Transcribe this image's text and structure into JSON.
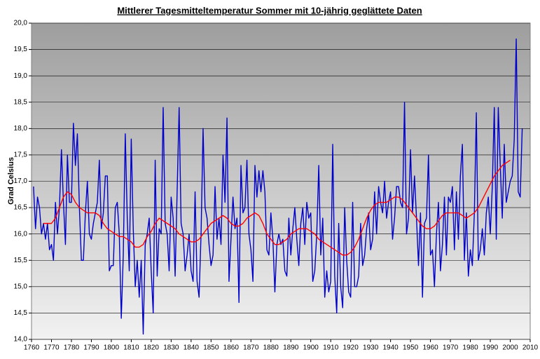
{
  "chart_data": {
    "type": "line",
    "title": "Mittlerer Tagesmitteltemperatur Sommer mit 10-jährig geglättete Daten",
    "y_label": "Grad Celsius",
    "xlim": [
      1760,
      2010
    ],
    "xticks": [
      1760,
      1770,
      1780,
      1790,
      1800,
      1810,
      1820,
      1830,
      1840,
      1850,
      1860,
      1870,
      1880,
      1890,
      1900,
      1910,
      1920,
      1930,
      1940,
      1950,
      1960,
      1970,
      1980,
      1990,
      2000,
      2010
    ],
    "ylim": [
      14,
      20
    ],
    "yticks": [
      {
        "value": 14,
        "label": "14,0"
      },
      {
        "value": 14.5,
        "label": "14,5"
      },
      {
        "value": 15,
        "label": "15,0"
      },
      {
        "value": 15.5,
        "label": "15,5"
      },
      {
        "value": 16,
        "label": "16,0"
      },
      {
        "value": 16.5,
        "label": "16,5"
      },
      {
        "value": 17,
        "label": "17,0"
      },
      {
        "value": 17.5,
        "label": "17,5"
      },
      {
        "value": 18,
        "label": "18,0"
      },
      {
        "value": 18.5,
        "label": "18,5"
      },
      {
        "value": 19,
        "label": "19,0"
      },
      {
        "value": 19.5,
        "label": "19,5"
      },
      {
        "value": 20,
        "label": "20,0"
      }
    ],
    "grid": true,
    "series": [
      {
        "color": "#0000cc",
        "x": [
          1761,
          1762,
          1763,
          1764,
          1765,
          1766,
          1767,
          1768,
          1769,
          1770,
          1771,
          1772,
          1773,
          1774,
          1775,
          1776,
          1777,
          1778,
          1779,
          1780,
          1781,
          1782,
          1783,
          1784,
          1785,
          1786,
          1787,
          1788,
          1789,
          1790,
          1791,
          1792,
          1793,
          1794,
          1795,
          1796,
          1797,
          1798,
          1799,
          1800,
          1801,
          1802,
          1803,
          1804,
          1805,
          1806,
          1807,
          1808,
          1809,
          1810,
          1811,
          1812,
          1813,
          1814,
          1815,
          1816,
          1817,
          1818,
          1819,
          1820,
          1821,
          1822,
          1823,
          1824,
          1825,
          1826,
          1827,
          1828,
          1829,
          1830,
          1831,
          1832,
          1833,
          1834,
          1835,
          1836,
          1837,
          1838,
          1839,
          1840,
          1841,
          1842,
          1843,
          1844,
          1845,
          1846,
          1847,
          1848,
          1849,
          1850,
          1851,
          1852,
          1853,
          1854,
          1855,
          1856,
          1857,
          1858,
          1859,
          1860,
          1861,
          1862,
          1863,
          1864,
          1865,
          1866,
          1867,
          1868,
          1869,
          1870,
          1871,
          1872,
          1873,
          1874,
          1875,
          1876,
          1877,
          1878,
          1879,
          1880,
          1881,
          1882,
          1883,
          1884,
          1885,
          1886,
          1887,
          1888,
          1889,
          1890,
          1891,
          1892,
          1893,
          1894,
          1895,
          1896,
          1897,
          1898,
          1899,
          1900,
          1901,
          1902,
          1903,
          1904,
          1905,
          1906,
          1907,
          1908,
          1909,
          1910,
          1911,
          1912,
          1913,
          1914,
          1915,
          1916,
          1917,
          1918,
          1919,
          1920,
          1921,
          1922,
          1923,
          1924,
          1925,
          1926,
          1927,
          1928,
          1929,
          1930,
          1931,
          1932,
          1933,
          1934,
          1935,
          1936,
          1937,
          1938,
          1939,
          1940,
          1941,
          1942,
          1943,
          1944,
          1945,
          1946,
          1947,
          1948,
          1949,
          1950,
          1951,
          1952,
          1953,
          1954,
          1955,
          1956,
          1957,
          1958,
          1959,
          1960,
          1961,
          1962,
          1963,
          1964,
          1965,
          1966,
          1967,
          1968,
          1969,
          1970,
          1971,
          1972,
          1973,
          1974,
          1975,
          1976,
          1977,
          1978,
          1979,
          1980,
          1981,
          1982,
          1983,
          1984,
          1985,
          1986,
          1987,
          1988,
          1989,
          1990,
          1991,
          1992,
          1993,
          1994,
          1995,
          1996,
          1997,
          1998,
          1999,
          2000,
          2001,
          2002,
          2003,
          2004,
          2005,
          2006
        ],
        "values": [
          16.9,
          16.1,
          16.7,
          16.5,
          16.0,
          16.2,
          15.9,
          16.2,
          15.7,
          15.8,
          15.5,
          16.6,
          16.0,
          16.5,
          17.6,
          16.6,
          15.8,
          17.5,
          16.6,
          16.6,
          18.1,
          17.3,
          17.9,
          16.5,
          15.5,
          15.5,
          16.4,
          17.0,
          16.0,
          15.9,
          16.2,
          16.4,
          16.6,
          17.4,
          16.1,
          16.4,
          17.1,
          17.1,
          15.3,
          15.4,
          15.4,
          16.5,
          16.6,
          16.0,
          14.4,
          15.6,
          17.9,
          16.3,
          15.3,
          17.8,
          16.1,
          15.0,
          15.5,
          14.8,
          15.5,
          14.1,
          15.8,
          16.0,
          16.3,
          15.3,
          14.5,
          17.4,
          15.2,
          16.1,
          16.0,
          18.4,
          16.2,
          16.0,
          15.3,
          16.7,
          16.3,
          15.2,
          16.8,
          18.4,
          16.2,
          16.0,
          15.3,
          15.6,
          16.0,
          15.3,
          15.1,
          16.8,
          15.1,
          14.8,
          16.0,
          18.0,
          16.5,
          16.3,
          15.8,
          15.4,
          15.6,
          16.9,
          15.9,
          16.3,
          15.8,
          17.5,
          16.6,
          18.2,
          15.1,
          15.9,
          16.7,
          16.1,
          16.3,
          14.7,
          17.3,
          16.4,
          16.5,
          17.4,
          16.0,
          15.7,
          15.1,
          17.3,
          16.7,
          17.2,
          16.8,
          17.2,
          16.8,
          15.7,
          15.6,
          16.4,
          15.9,
          14.9,
          15.8,
          16.0,
          15.8,
          15.9,
          15.3,
          15.2,
          16.3,
          15.6,
          16.1,
          16.5,
          15.9,
          15.4,
          16.2,
          16.5,
          15.8,
          16.6,
          16.3,
          16.4,
          15.1,
          15.3,
          16.0,
          17.3,
          15.6,
          16.3,
          14.8,
          15.3,
          14.9,
          15.1,
          17.7,
          15.2,
          14.5,
          16.2,
          15.0,
          14.6,
          16.5,
          15.5,
          14.9,
          14.8,
          16.6,
          15.0,
          15.0,
          15.2,
          16.2,
          15.4,
          15.6,
          16.1,
          16.4,
          15.7,
          15.9,
          16.8,
          16.0,
          16.9,
          16.6,
          16.4,
          17.0,
          16.3,
          16.6,
          16.8,
          15.9,
          16.3,
          16.9,
          16.9,
          16.6,
          16.5,
          18.5,
          16.0,
          16.3,
          17.6,
          16.4,
          17.1,
          16.3,
          15.4,
          16.4,
          14.8,
          16.2,
          16.3,
          17.5,
          15.6,
          15.7,
          15.0,
          16.0,
          16.6,
          15.3,
          15.8,
          16.7,
          15.6,
          16.7,
          16.6,
          16.9,
          15.7,
          16.8,
          15.9,
          17.1,
          17.7,
          15.5,
          16.4,
          15.2,
          15.7,
          15.4,
          16.4,
          18.3,
          15.5,
          15.7,
          16.1,
          15.6,
          16.4,
          16.7,
          16.0,
          16.9,
          18.4,
          15.9,
          18.4,
          17.3,
          16.3,
          17.7,
          16.6,
          16.8,
          17.0,
          17.1,
          17.8,
          19.7,
          16.8,
          16.7,
          18.0
        ]
      },
      {
        "color": "#ff0000",
        "x": [
          1766,
          1768,
          1770,
          1772,
          1774,
          1776,
          1778,
          1780,
          1782,
          1784,
          1786,
          1788,
          1790,
          1792,
          1794,
          1796,
          1798,
          1800,
          1802,
          1804,
          1806,
          1808,
          1810,
          1812,
          1814,
          1816,
          1818,
          1820,
          1822,
          1824,
          1826,
          1828,
          1830,
          1832,
          1834,
          1836,
          1838,
          1840,
          1842,
          1844,
          1846,
          1848,
          1850,
          1852,
          1854,
          1856,
          1858,
          1860,
          1862,
          1864,
          1866,
          1868,
          1870,
          1872,
          1874,
          1876,
          1878,
          1880,
          1882,
          1884,
          1886,
          1888,
          1890,
          1892,
          1894,
          1896,
          1898,
          1900,
          1902,
          1904,
          1906,
          1908,
          1910,
          1912,
          1914,
          1916,
          1918,
          1920,
          1922,
          1924,
          1926,
          1928,
          1930,
          1932,
          1934,
          1936,
          1938,
          1940,
          1942,
          1944,
          1946,
          1948,
          1950,
          1952,
          1954,
          1956,
          1958,
          1960,
          1962,
          1964,
          1966,
          1968,
          1970,
          1972,
          1974,
          1976,
          1978,
          1980,
          1982,
          1984,
          1986,
          1988,
          1990,
          1992,
          1994,
          1996,
          1998,
          2000
        ],
        "values": [
          16.2,
          16.2,
          16.2,
          16.3,
          16.5,
          16.7,
          16.8,
          16.75,
          16.6,
          16.5,
          16.45,
          16.4,
          16.4,
          16.4,
          16.35,
          16.2,
          16.1,
          16.05,
          16.0,
          15.95,
          15.95,
          15.9,
          15.85,
          15.75,
          15.75,
          15.8,
          15.95,
          16.05,
          16.2,
          16.3,
          16.25,
          16.2,
          16.15,
          16.1,
          16.0,
          15.95,
          15.9,
          15.85,
          15.85,
          15.9,
          16.0,
          16.1,
          16.2,
          16.25,
          16.3,
          16.35,
          16.3,
          16.2,
          16.15,
          16.15,
          16.2,
          16.3,
          16.35,
          16.4,
          16.35,
          16.2,
          16.0,
          15.9,
          15.8,
          15.8,
          15.85,
          15.9,
          16.0,
          16.05,
          16.1,
          16.1,
          16.1,
          16.05,
          16.0,
          15.9,
          15.85,
          15.8,
          15.75,
          15.7,
          15.65,
          15.6,
          15.6,
          15.65,
          15.75,
          15.9,
          16.1,
          16.3,
          16.45,
          16.55,
          16.6,
          16.6,
          16.6,
          16.65,
          16.7,
          16.7,
          16.65,
          16.55,
          16.45,
          16.35,
          16.25,
          16.15,
          16.1,
          16.1,
          16.15,
          16.25,
          16.35,
          16.4,
          16.4,
          16.4,
          16.4,
          16.35,
          16.3,
          16.35,
          16.4,
          16.5,
          16.65,
          16.8,
          16.95,
          17.1,
          17.2,
          17.3,
          17.35,
          17.4
        ]
      }
    ]
  }
}
